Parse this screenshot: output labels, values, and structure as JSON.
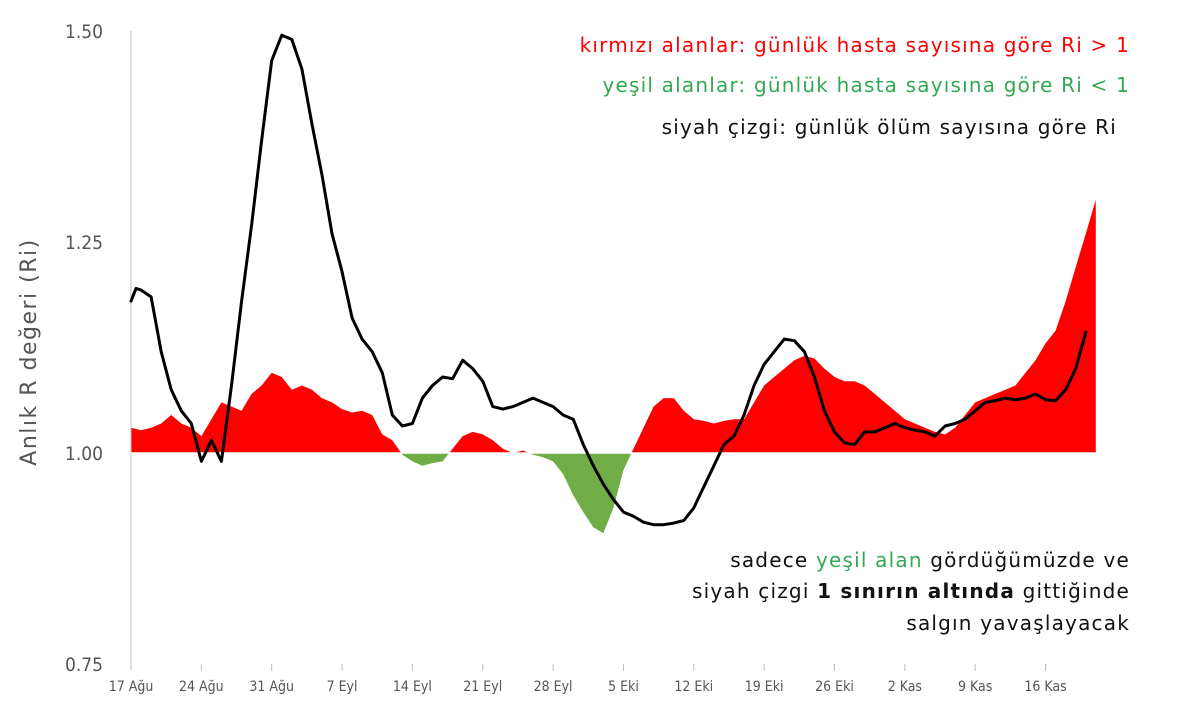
{
  "chart_data": {
    "type": "area",
    "ylabel": "Anlık R değeri (Ri)",
    "ylim": [
      0.75,
      1.5
    ],
    "yticks": [
      "0.75",
      "1.00",
      "1.25",
      "1.50"
    ],
    "ytick_values": [
      0.75,
      1.0,
      1.25,
      1.5
    ],
    "baseline": 1.0,
    "xlim": [
      0,
      100
    ],
    "xticks": [
      {
        "label": "17 Ağu",
        "day": 0
      },
      {
        "label": "24 Ağu",
        "day": 7
      },
      {
        "label": "31 Ağu",
        "day": 14
      },
      {
        "label": "7 Eyl",
        "day": 21
      },
      {
        "label": "14 Eyl",
        "day": 28
      },
      {
        "label": "21 Eyl",
        "day": 35
      },
      {
        "label": "28 Eyl",
        "day": 42
      },
      {
        "label": "5 Eki",
        "day": 49
      },
      {
        "label": "12 Eki",
        "day": 56
      },
      {
        "label": "19 Eki",
        "day": 63
      },
      {
        "label": "26 Eki",
        "day": 70
      },
      {
        "label": "2 Kas",
        "day": 77
      },
      {
        "label": "9 Kas",
        "day": 84
      },
      {
        "label": "16 Kas",
        "day": 91
      }
    ],
    "series": [
      {
        "name": "günlük hasta sayısına göre Ri",
        "kind": "area",
        "color_above": "#ff0000",
        "color_below": "#70ad47",
        "x": [
          0,
          1,
          2,
          3,
          4,
          5,
          6,
          7,
          8,
          9,
          10,
          11,
          12,
          13,
          14,
          15,
          16,
          17,
          18,
          19,
          20,
          21,
          22,
          23,
          24,
          25,
          26,
          27,
          28,
          29,
          30,
          31,
          32,
          33,
          34,
          35,
          36,
          37,
          38,
          39,
          40,
          41,
          42,
          43,
          44,
          45,
          46,
          47,
          48,
          49,
          50,
          51,
          52,
          53,
          54,
          55,
          56,
          57,
          58,
          59,
          60,
          61,
          62,
          63,
          64,
          65,
          66,
          67,
          68,
          69,
          70,
          71,
          72,
          73,
          74,
          75,
          76,
          77,
          78,
          79,
          80,
          81,
          82,
          83,
          84,
          85,
          86,
          87,
          88,
          89,
          90,
          91,
          92,
          93,
          94,
          95,
          96
        ],
        "y": [
          1.03,
          1.027,
          1.03,
          1.035,
          1.045,
          1.035,
          1.03,
          1.02,
          1.04,
          1.06,
          1.055,
          1.05,
          1.07,
          1.08,
          1.095,
          1.09,
          1.075,
          1.08,
          1.075,
          1.065,
          1.06,
          1.052,
          1.048,
          1.05,
          1.045,
          1.022,
          1.015,
          0.998,
          0.99,
          0.985,
          0.988,
          0.99,
          1.005,
          1.02,
          1.025,
          1.022,
          1.015,
          1.005,
          1.0,
          1.003,
          0.998,
          0.995,
          0.99,
          0.975,
          0.95,
          0.93,
          0.912,
          0.905,
          0.935,
          0.98,
          1.005,
          1.03,
          1.055,
          1.065,
          1.065,
          1.05,
          1.04,
          1.038,
          1.035,
          1.038,
          1.04,
          1.04,
          1.06,
          1.08,
          1.09,
          1.1,
          1.11,
          1.115,
          1.112,
          1.1,
          1.09,
          1.085,
          1.085,
          1.08,
          1.07,
          1.06,
          1.05,
          1.04,
          1.035,
          1.03,
          1.025,
          1.022,
          1.03,
          1.045,
          1.06,
          1.065,
          1.07,
          1.075,
          1.08,
          1.095,
          1.11,
          1.13,
          1.145,
          1.18,
          1.22,
          1.26,
          1.3
        ]
      },
      {
        "name": "günlük ölüm sayısına göre Ri",
        "kind": "line",
        "color": "#000000",
        "x": [
          0,
          0.5,
          1,
          2,
          3,
          4,
          5,
          6,
          7,
          8,
          9,
          10,
          11,
          12,
          13,
          14,
          15,
          16,
          17,
          18,
          19,
          20,
          21,
          22,
          23,
          24,
          25,
          26,
          27,
          28,
          29,
          30,
          31,
          32,
          33,
          34,
          35,
          36,
          37,
          38,
          39,
          40,
          41,
          42,
          43,
          44,
          45,
          46,
          47,
          48,
          49,
          50,
          51,
          52,
          53,
          54,
          55,
          56,
          57,
          58,
          59,
          60,
          61,
          62,
          63,
          64,
          65,
          66,
          67,
          68,
          69,
          70,
          71,
          72,
          73,
          74,
          75,
          76,
          77,
          78,
          79,
          80,
          81,
          82,
          83,
          84,
          85,
          86,
          87,
          88,
          89,
          90,
          91,
          92,
          93,
          94,
          95
        ],
        "y": [
          1.18,
          1.195,
          1.193,
          1.185,
          1.12,
          1.075,
          1.05,
          1.035,
          0.99,
          1.015,
          0.99,
          1.08,
          1.18,
          1.27,
          1.37,
          1.465,
          1.495,
          1.49,
          1.455,
          1.39,
          1.33,
          1.26,
          1.215,
          1.16,
          1.135,
          1.12,
          1.095,
          1.045,
          1.032,
          1.035,
          1.065,
          1.08,
          1.09,
          1.088,
          1.11,
          1.1,
          1.085,
          1.055,
          1.052,
          1.055,
          1.06,
          1.065,
          1.06,
          1.055,
          1.045,
          1.04,
          1.01,
          0.985,
          0.963,
          0.945,
          0.93,
          0.925,
          0.918,
          0.915,
          0.915,
          0.917,
          0.92,
          0.935,
          0.96,
          0.985,
          1.01,
          1.02,
          1.045,
          1.08,
          1.105,
          1.12,
          1.135,
          1.133,
          1.12,
          1.09,
          1.05,
          1.025,
          1.012,
          1.01,
          1.025,
          1.025,
          1.03,
          1.035,
          1.03,
          1.027,
          1.025,
          1.02,
          1.032,
          1.035,
          1.04,
          1.05,
          1.06,
          1.062,
          1.065,
          1.063,
          1.065,
          1.07,
          1.063,
          1.062,
          1.075,
          1.1,
          1.143
        ]
      }
    ]
  },
  "legend": [
    {
      "text": "kırmızı alanlar: günlük hasta sayısına göre Ri > 1",
      "color": "#ff0000"
    },
    {
      "text": "yeşil alanlar: günlük hasta sayısına göre Ri < 1",
      "color": "#33a853"
    },
    {
      "text": "siyah çizgi: günlük ölüm sayısına göre Ri",
      "color": "#111111"
    }
  ],
  "note": {
    "line1_a": "sadece ",
    "line1_green": "yeşil alan",
    "line1_b": " gördüğümüzde ve",
    "line2_a": "siyah çizgi ",
    "line2_bold": "1 sınırın altında",
    "line2_b": " gittiğinde",
    "line3": "salgın yavaşlayacak",
    "green_color": "#33a853"
  }
}
